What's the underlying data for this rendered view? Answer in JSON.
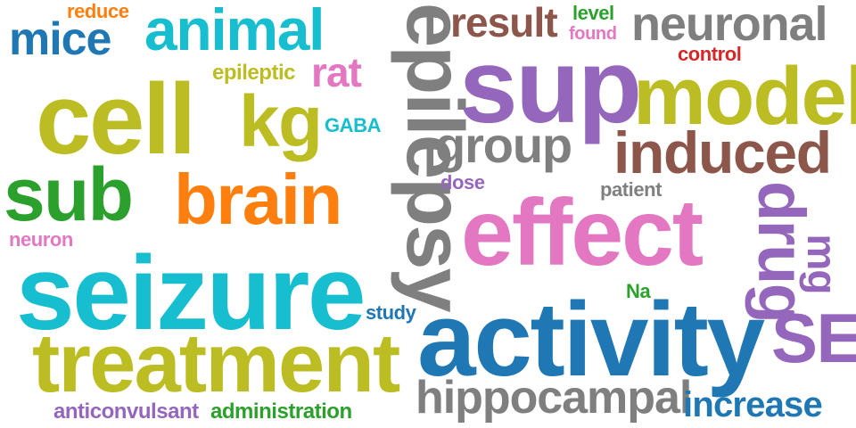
{
  "words": {
    "reduce": "reduce",
    "mice": "mice",
    "animal": "animal",
    "epilepsy": "epilepsy",
    "result": "result",
    "level": "level",
    "found": "found",
    "neuronal": "neuronal",
    "sup": "sup",
    "control": "control",
    "epileptic": "epileptic",
    "rat": "rat",
    "cell": "cell",
    "kg": "kg",
    "GABA": "GABA",
    "model": "model",
    "group": "group",
    "induced": "induced",
    "sub": "sub",
    "brain": "brain",
    "dose": "dose",
    "patient": "patient",
    "effect": "effect",
    "drug": "drug",
    "mg": "mg",
    "neuron": "neuron",
    "seizure": "seizure",
    "Na": "Na",
    "study": "study",
    "activity": "activity",
    "SE": "SE",
    "treatment": "treatment",
    "hippocampal": "hippocampal",
    "increase": "increase",
    "anticonvulsant": "anticonvulsant",
    "administration": "administration"
  },
  "palette": {
    "blue": "#1f77b4",
    "orange": "#ff7f0e",
    "green": "#2ca02c",
    "red": "#d62728",
    "purple": "#9467bd",
    "brown": "#8c564b",
    "pink": "#e377c2",
    "gray": "#7f7f7f",
    "olive": "#bcbd22",
    "cyan": "#17becf"
  }
}
